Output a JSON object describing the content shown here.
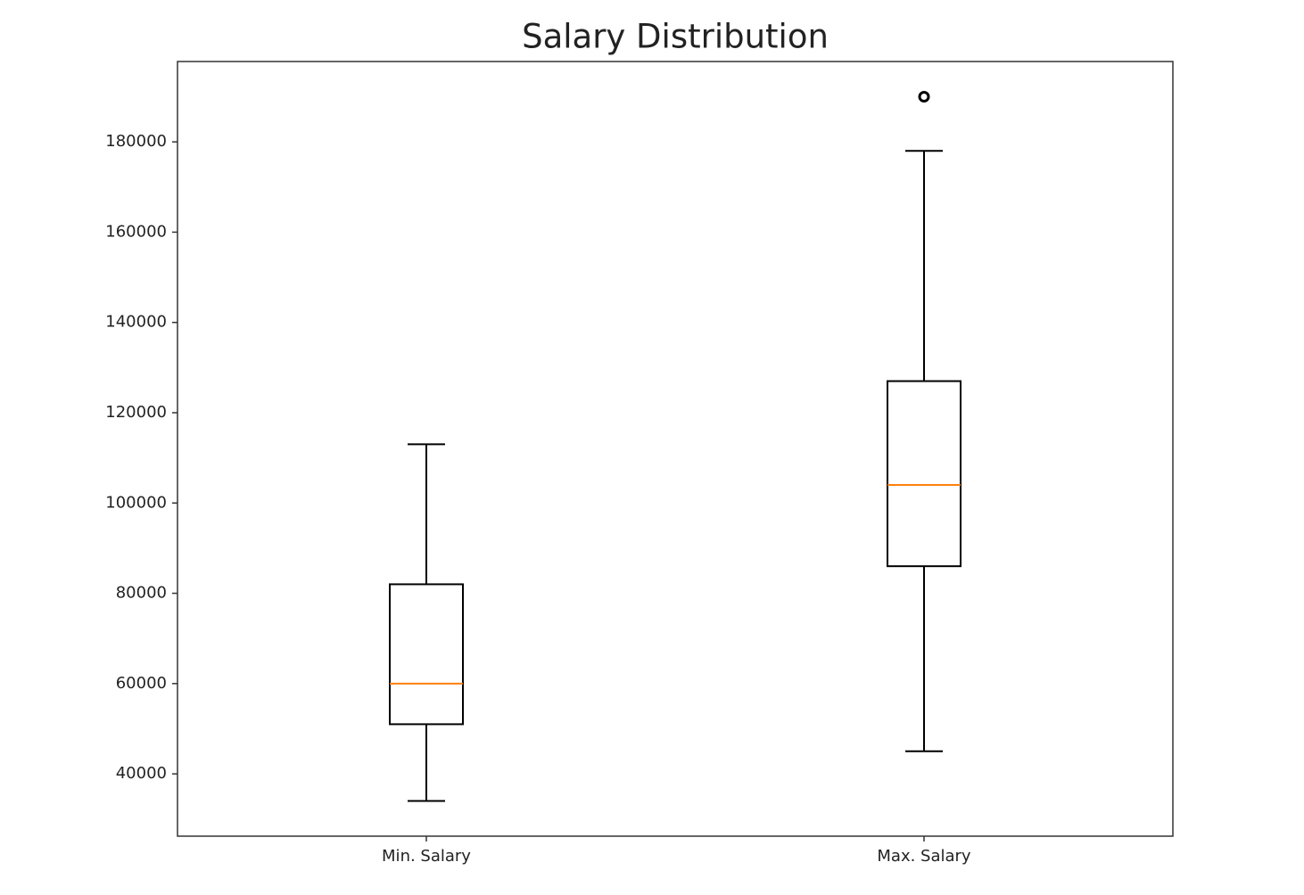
{
  "chart_data": {
    "type": "box",
    "title": "Salary Distribution",
    "categories": [
      "Min. Salary",
      "Max. Salary"
    ],
    "boxes": [
      {
        "whislo": 34000,
        "q1": 51000,
        "med": 60000,
        "q3": 82000,
        "whishi": 113000
      },
      {
        "whislo": 45000,
        "q1": 86000,
        "med": 104000,
        "q3": 127000,
        "whishi": 178000,
        "fliers": [
          190000
        ]
      }
    ],
    "ylim": [
      26200,
      197800
    ],
    "yticks": [
      40000,
      60000,
      80000,
      100000,
      120000,
      140000,
      160000,
      180000
    ],
    "box_color": "#000000",
    "median_color": "#ff7f0e"
  }
}
